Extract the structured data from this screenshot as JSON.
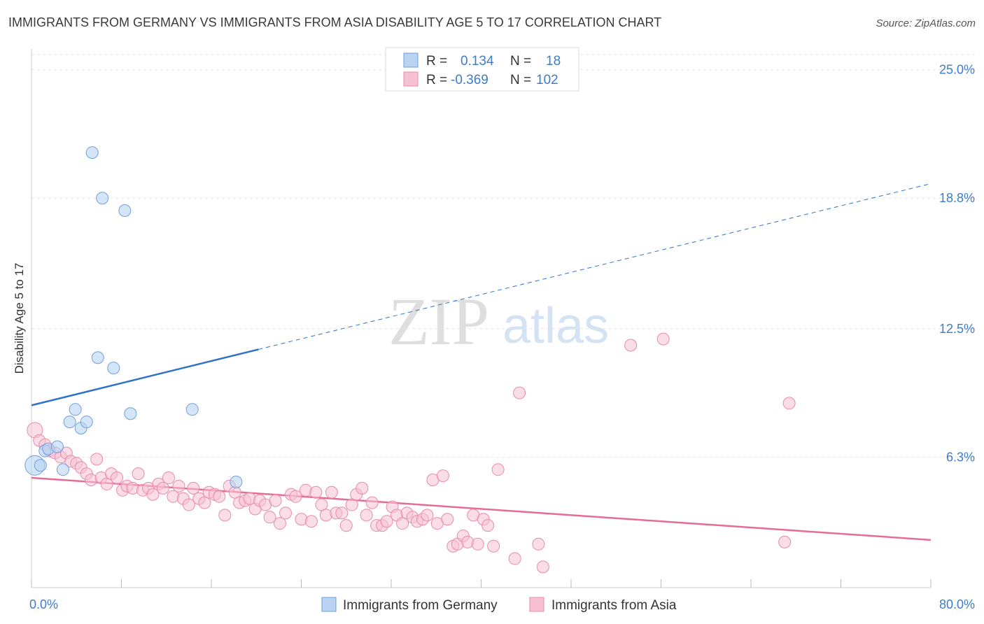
{
  "title": "IMMIGRANTS FROM GERMANY VS IMMIGRANTS FROM ASIA DISABILITY AGE 5 TO 17 CORRELATION CHART",
  "source": "Source: ZipAtlas.com",
  "watermark": {
    "zip": "ZIP",
    "atlas": "atlas"
  },
  "colors": {
    "germany_fill": "#b9d3f3",
    "germany_stroke": "#6f9fdc",
    "germany_line": "#2f73c9",
    "asia_fill": "#f7c1d3",
    "asia_stroke": "#e98aab",
    "asia_line": "#e46d98",
    "grid": "#e3e3e3",
    "axis_text": "#3d7cc9"
  },
  "legend": {
    "rows": [
      {
        "r_label": "R =",
        "r_value": "0.134",
        "n_label": "N =",
        "n_value": "18"
      },
      {
        "r_label": "R =",
        "r_value": "-0.369",
        "n_label": "N =",
        "n_value": "102"
      }
    ]
  },
  "chart_data": {
    "type": "scatter",
    "title": "IMMIGRANTS FROM GERMANY VS IMMIGRANTS FROM ASIA DISABILITY AGE 5 TO 17 CORRELATION CHART",
    "xlabel": "",
    "ylabel": "Disability Age 5 to 17",
    "xlim": [
      0,
      80
    ],
    "ylim": [
      0,
      26
    ],
    "x_tick_labels": [
      {
        "value": 0,
        "label": "0.0%"
      },
      {
        "value": 80,
        "label": "80.0%"
      }
    ],
    "y_tick_labels": [
      {
        "value": 6.3,
        "label": "6.3%"
      },
      {
        "value": 12.5,
        "label": "12.5%"
      },
      {
        "value": 18.8,
        "label": "18.8%"
      },
      {
        "value": 25.0,
        "label": "25.0%"
      }
    ],
    "grid": true,
    "legend_position": "top-center",
    "series": [
      {
        "name": "Immigrants from Germany",
        "points": [
          [
            0.3,
            5.9
          ],
          [
            0.8,
            5.9
          ],
          [
            1.2,
            6.6
          ],
          [
            1.5,
            6.7
          ],
          [
            2.3,
            6.8
          ],
          [
            2.8,
            5.7
          ],
          [
            3.4,
            8.0
          ],
          [
            3.9,
            8.6
          ],
          [
            4.4,
            7.7
          ],
          [
            4.9,
            8.0
          ],
          [
            5.4,
            21.0
          ],
          [
            5.9,
            11.1
          ],
          [
            6.3,
            18.8
          ],
          [
            7.3,
            10.6
          ],
          [
            8.3,
            18.2
          ],
          [
            8.8,
            8.4
          ],
          [
            14.3,
            8.6
          ],
          [
            18.2,
            5.1
          ]
        ],
        "trend": {
          "x1": 0,
          "y1": 8.8,
          "x2": 20.2,
          "y2": 11.5,
          "dashed_to_x": 80,
          "dashed_to_y": 19.5
        }
      },
      {
        "name": "Immigrants from Asia",
        "points": [
          [
            0.3,
            7.6
          ],
          [
            0.7,
            7.1
          ],
          [
            1.2,
            6.9
          ],
          [
            1.6,
            6.6
          ],
          [
            2.1,
            6.5
          ],
          [
            2.6,
            6.3
          ],
          [
            3.1,
            6.5
          ],
          [
            3.5,
            6.1
          ],
          [
            4.0,
            6.0
          ],
          [
            4.4,
            5.8
          ],
          [
            4.9,
            5.5
          ],
          [
            5.3,
            5.2
          ],
          [
            5.8,
            6.2
          ],
          [
            6.2,
            5.3
          ],
          [
            6.7,
            5.0
          ],
          [
            7.1,
            5.5
          ],
          [
            7.6,
            5.3
          ],
          [
            8.1,
            4.7
          ],
          [
            8.5,
            4.9
          ],
          [
            9.0,
            4.8
          ],
          [
            9.5,
            5.5
          ],
          [
            9.9,
            4.7
          ],
          [
            10.4,
            4.8
          ],
          [
            10.8,
            4.5
          ],
          [
            11.3,
            5.0
          ],
          [
            11.7,
            4.8
          ],
          [
            12.2,
            5.3
          ],
          [
            12.6,
            4.4
          ],
          [
            13.1,
            4.9
          ],
          [
            13.5,
            4.3
          ],
          [
            14.0,
            4.0
          ],
          [
            14.4,
            4.8
          ],
          [
            14.9,
            4.3
          ],
          [
            15.4,
            4.1
          ],
          [
            15.8,
            4.6
          ],
          [
            16.3,
            4.5
          ],
          [
            16.7,
            4.4
          ],
          [
            17.2,
            3.5
          ],
          [
            17.6,
            4.9
          ],
          [
            18.1,
            4.6
          ],
          [
            18.5,
            4.1
          ],
          [
            19.0,
            4.2
          ],
          [
            19.4,
            4.3
          ],
          [
            19.9,
            3.8
          ],
          [
            20.3,
            4.2
          ],
          [
            20.8,
            4.0
          ],
          [
            21.2,
            3.4
          ],
          [
            21.7,
            4.2
          ],
          [
            22.1,
            3.1
          ],
          [
            22.6,
            3.6
          ],
          [
            23.1,
            4.5
          ],
          [
            23.5,
            4.4
          ],
          [
            24.0,
            3.3
          ],
          [
            24.4,
            4.7
          ],
          [
            24.9,
            3.2
          ],
          [
            25.3,
            4.6
          ],
          [
            25.8,
            4.0
          ],
          [
            26.2,
            3.5
          ],
          [
            26.7,
            4.6
          ],
          [
            27.1,
            3.6
          ],
          [
            27.6,
            3.6
          ],
          [
            28.0,
            3.0
          ],
          [
            28.5,
            4.0
          ],
          [
            28.9,
            4.5
          ],
          [
            29.4,
            4.8
          ],
          [
            29.8,
            3.5
          ],
          [
            30.3,
            4.1
          ],
          [
            30.7,
            3.0
          ],
          [
            31.2,
            3.0
          ],
          [
            31.6,
            3.2
          ],
          [
            32.1,
            3.9
          ],
          [
            32.5,
            3.5
          ],
          [
            33.0,
            3.1
          ],
          [
            33.4,
            3.6
          ],
          [
            33.9,
            3.4
          ],
          [
            34.3,
            3.2
          ],
          [
            34.8,
            3.3
          ],
          [
            35.2,
            3.5
          ],
          [
            35.7,
            5.2
          ],
          [
            36.1,
            3.1
          ],
          [
            36.6,
            5.4
          ],
          [
            37.0,
            3.3
          ],
          [
            37.5,
            2.0
          ],
          [
            37.9,
            2.1
          ],
          [
            38.4,
            2.5
          ],
          [
            38.8,
            2.2
          ],
          [
            39.3,
            3.5
          ],
          [
            39.7,
            2.1
          ],
          [
            40.2,
            3.3
          ],
          [
            40.6,
            3.0
          ],
          [
            41.1,
            2.0
          ],
          [
            41.5,
            5.7
          ],
          [
            43.0,
            1.4
          ],
          [
            43.4,
            9.4
          ],
          [
            45.1,
            2.1
          ],
          [
            45.5,
            1.0
          ],
          [
            53.3,
            11.7
          ],
          [
            67.0,
            2.2
          ],
          [
            67.4,
            8.9
          ],
          [
            56.2,
            12.0
          ]
        ],
        "trend": {
          "x1": 0,
          "y1": 5.3,
          "x2": 80,
          "y2": 2.3
        }
      }
    ]
  },
  "bottom_legend": [
    {
      "label": "Immigrants from Germany"
    },
    {
      "label": "Immigrants from Asia"
    }
  ]
}
